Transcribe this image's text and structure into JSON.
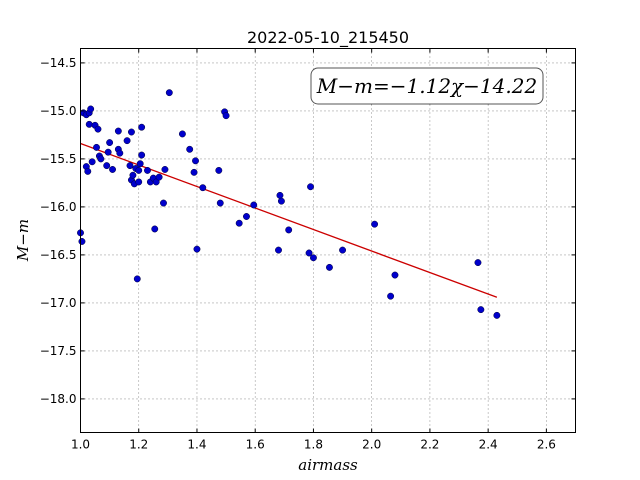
{
  "chart_data": {
    "type": "scatter",
    "title": "2022-05-10_215450",
    "xlabel": "airmass",
    "ylabel": "M−m",
    "xlim": [
      1.0,
      2.7
    ],
    "ylim": [
      -18.35,
      -14.35
    ],
    "y_inverted": true,
    "grid": true,
    "x_ticks": [
      "1.0",
      "1.2",
      "1.4",
      "1.6",
      "1.8",
      "2.0",
      "2.2",
      "2.4",
      "2.6"
    ],
    "y_ticks": [
      "−14.5",
      "−15.0",
      "−15.5",
      "−16.0",
      "−16.5",
      "−17.0",
      "−17.5",
      "−18.0"
    ],
    "annotation": "M−m=−1.12χ−14.22",
    "point_color": "#0000cc",
    "fit_color": "#cc0000",
    "fit": {
      "slope": -1.12,
      "intercept": -14.22,
      "x_range": [
        1.0,
        2.43
      ]
    },
    "points": [
      {
        "x": 1.0,
        "y": -16.27
      },
      {
        "x": 1.005,
        "y": -16.36
      },
      {
        "x": 1.01,
        "y": -15.02
      },
      {
        "x": 1.02,
        "y": -15.04
      },
      {
        "x": 1.02,
        "y": -15.58
      },
      {
        "x": 1.025,
        "y": -15.63
      },
      {
        "x": 1.03,
        "y": -15.02
      },
      {
        "x": 1.03,
        "y": -15.14
      },
      {
        "x": 1.035,
        "y": -14.98
      },
      {
        "x": 1.04,
        "y": -15.53
      },
      {
        "x": 1.05,
        "y": -15.15
      },
      {
        "x": 1.055,
        "y": -15.38
      },
      {
        "x": 1.06,
        "y": -15.19
      },
      {
        "x": 1.065,
        "y": -15.47
      },
      {
        "x": 1.07,
        "y": -15.5
      },
      {
        "x": 1.09,
        "y": -15.57
      },
      {
        "x": 1.095,
        "y": -15.43
      },
      {
        "x": 1.1,
        "y": -15.33
      },
      {
        "x": 1.11,
        "y": -15.61
      },
      {
        "x": 1.13,
        "y": -15.21
      },
      {
        "x": 1.13,
        "y": -15.4
      },
      {
        "x": 1.135,
        "y": -15.44
      },
      {
        "x": 1.16,
        "y": -15.31
      },
      {
        "x": 1.17,
        "y": -15.57
      },
      {
        "x": 1.175,
        "y": -15.22
      },
      {
        "x": 1.175,
        "y": -15.72
      },
      {
        "x": 1.18,
        "y": -15.67
      },
      {
        "x": 1.185,
        "y": -15.76
      },
      {
        "x": 1.19,
        "y": -15.6
      },
      {
        "x": 1.195,
        "y": -16.75
      },
      {
        "x": 1.2,
        "y": -15.62
      },
      {
        "x": 1.2,
        "y": -15.74
      },
      {
        "x": 1.205,
        "y": -15.55
      },
      {
        "x": 1.21,
        "y": -15.17
      },
      {
        "x": 1.21,
        "y": -15.46
      },
      {
        "x": 1.23,
        "y": -15.62
      },
      {
        "x": 1.24,
        "y": -15.74
      },
      {
        "x": 1.25,
        "y": -15.7
      },
      {
        "x": 1.255,
        "y": -16.23
      },
      {
        "x": 1.26,
        "y": -15.74
      },
      {
        "x": 1.27,
        "y": -15.69
      },
      {
        "x": 1.285,
        "y": -15.96
      },
      {
        "x": 1.29,
        "y": -15.61
      },
      {
        "x": 1.305,
        "y": -14.81
      },
      {
        "x": 1.35,
        "y": -15.24
      },
      {
        "x": 1.375,
        "y": -15.4
      },
      {
        "x": 1.39,
        "y": -15.64
      },
      {
        "x": 1.395,
        "y": -15.52
      },
      {
        "x": 1.4,
        "y": -16.44
      },
      {
        "x": 1.42,
        "y": -15.8
      },
      {
        "x": 1.475,
        "y": -15.62
      },
      {
        "x": 1.48,
        "y": -15.96
      },
      {
        "x": 1.495,
        "y": -15.01
      },
      {
        "x": 1.5,
        "y": -15.05
      },
      {
        "x": 1.545,
        "y": -16.17
      },
      {
        "x": 1.57,
        "y": -16.1
      },
      {
        "x": 1.595,
        "y": -15.98
      },
      {
        "x": 1.68,
        "y": -16.45
      },
      {
        "x": 1.685,
        "y": -15.88
      },
      {
        "x": 1.69,
        "y": -15.94
      },
      {
        "x": 1.715,
        "y": -16.24
      },
      {
        "x": 1.785,
        "y": -16.48
      },
      {
        "x": 1.79,
        "y": -15.79
      },
      {
        "x": 1.8,
        "y": -16.53
      },
      {
        "x": 1.855,
        "y": -16.63
      },
      {
        "x": 1.9,
        "y": -16.45
      },
      {
        "x": 2.01,
        "y": -16.18
      },
      {
        "x": 2.065,
        "y": -16.93
      },
      {
        "x": 2.08,
        "y": -16.71
      },
      {
        "x": 2.365,
        "y": -16.58
      },
      {
        "x": 2.375,
        "y": -17.07
      },
      {
        "x": 2.43,
        "y": -17.13
      }
    ]
  }
}
